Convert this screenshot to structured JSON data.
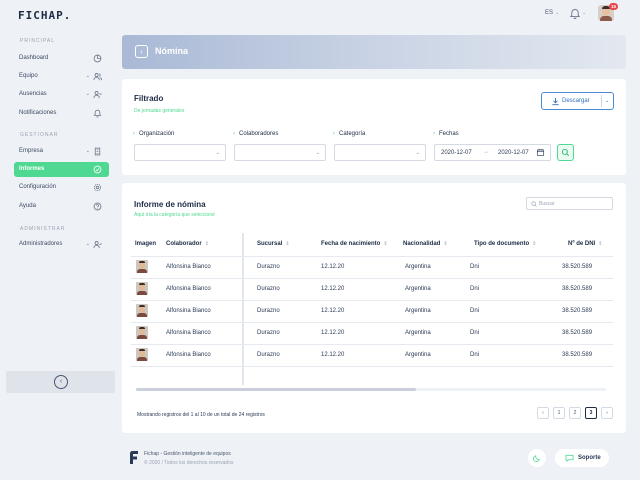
{
  "app": {
    "logo": "FICHAP.",
    "language": "ES",
    "notification_count": "15"
  },
  "sidebar": {
    "sections": {
      "principal": "PRINCIPAL",
      "gestionar": "GESTIONAR",
      "administrar": "ADMINISTRAR"
    },
    "items": [
      {
        "label": "Dashboard",
        "icon": "chart-pie-icon"
      },
      {
        "label": "Equipo",
        "icon": "users-icon"
      },
      {
        "label": "Ausencias",
        "icon": "user-minus-icon"
      },
      {
        "label": "Notificaciones",
        "icon": "bell-icon"
      },
      {
        "label": "Empresa",
        "icon": "building-icon"
      },
      {
        "label": "Informes",
        "icon": "report-icon",
        "active": true
      },
      {
        "label": "Configuración",
        "icon": "gear-icon"
      },
      {
        "label": "Ayuda",
        "icon": "help-icon"
      },
      {
        "label": "Administradores",
        "icon": "admin-icon"
      }
    ]
  },
  "header": {
    "title": "Nómina"
  },
  "filter": {
    "title": "Filtrado",
    "subtitle": "De jornadas generales",
    "download_label": "Descargar",
    "fields": {
      "organizacion": "Organización",
      "colaboradores": "Colaboradores",
      "categoria": "Categoría",
      "fechas": "Fechas"
    },
    "date_from": "2020-12-07",
    "date_to": "2020-12-07"
  },
  "report": {
    "title": "Informe de nómina",
    "subtitle": "Aquí iría la categoría que seleccioné",
    "search_placeholder": "Buscar",
    "columns": {
      "imagen": "Imagen",
      "colaborador": "Colaborador",
      "sucursal": "Sucursal",
      "nacimiento": "Fecha de nacimiento",
      "nacionalidad": "Nacionalidad",
      "tipo_doc": "Tipo de documento",
      "dni": "Nº de DNI"
    },
    "rows": [
      {
        "colaborador": "Alfonsina Bianco",
        "sucursal": "Durazno",
        "nacimiento": "12.12.20",
        "nacionalidad": "Argentina",
        "tipo_doc": "Dni",
        "dni": "38.520.589"
      },
      {
        "colaborador": "Alfonsina Bianco",
        "sucursal": "Durazno",
        "nacimiento": "12.12.20",
        "nacionalidad": "Argentina",
        "tipo_doc": "Dni",
        "dni": "38.520.589"
      },
      {
        "colaborador": "Alfonsina Bianco",
        "sucursal": "Durazno",
        "nacimiento": "12.12.20",
        "nacionalidad": "Argentina",
        "tipo_doc": "Dni",
        "dni": "38.520.589"
      },
      {
        "colaborador": "Alfonsina Bianco",
        "sucursal": "Durazno",
        "nacimiento": "12.12.20",
        "nacionalidad": "Argentina",
        "tipo_doc": "Dni",
        "dni": "38.520.589"
      },
      {
        "colaborador": "Alfonsina Bianco",
        "sucursal": "Durazno",
        "nacimiento": "12.12.20",
        "nacionalidad": "Argentina",
        "tipo_doc": "Dni",
        "dni": "38.520.589"
      }
    ],
    "pagination_text": "Mostrando registros del 1 al 10 de un total de 24 registros",
    "pages": [
      "1",
      "2",
      "3"
    ],
    "current_page": "3"
  },
  "footer": {
    "line1": "Fichap - Gestión inteligente de equipos",
    "line2": "© 2020 / Todos los derechos reservados",
    "support_label": "Soporte"
  },
  "colors": {
    "accent": "#4ed891",
    "primary_blue": "#2f6fc0",
    "badge": "#e8474a"
  }
}
